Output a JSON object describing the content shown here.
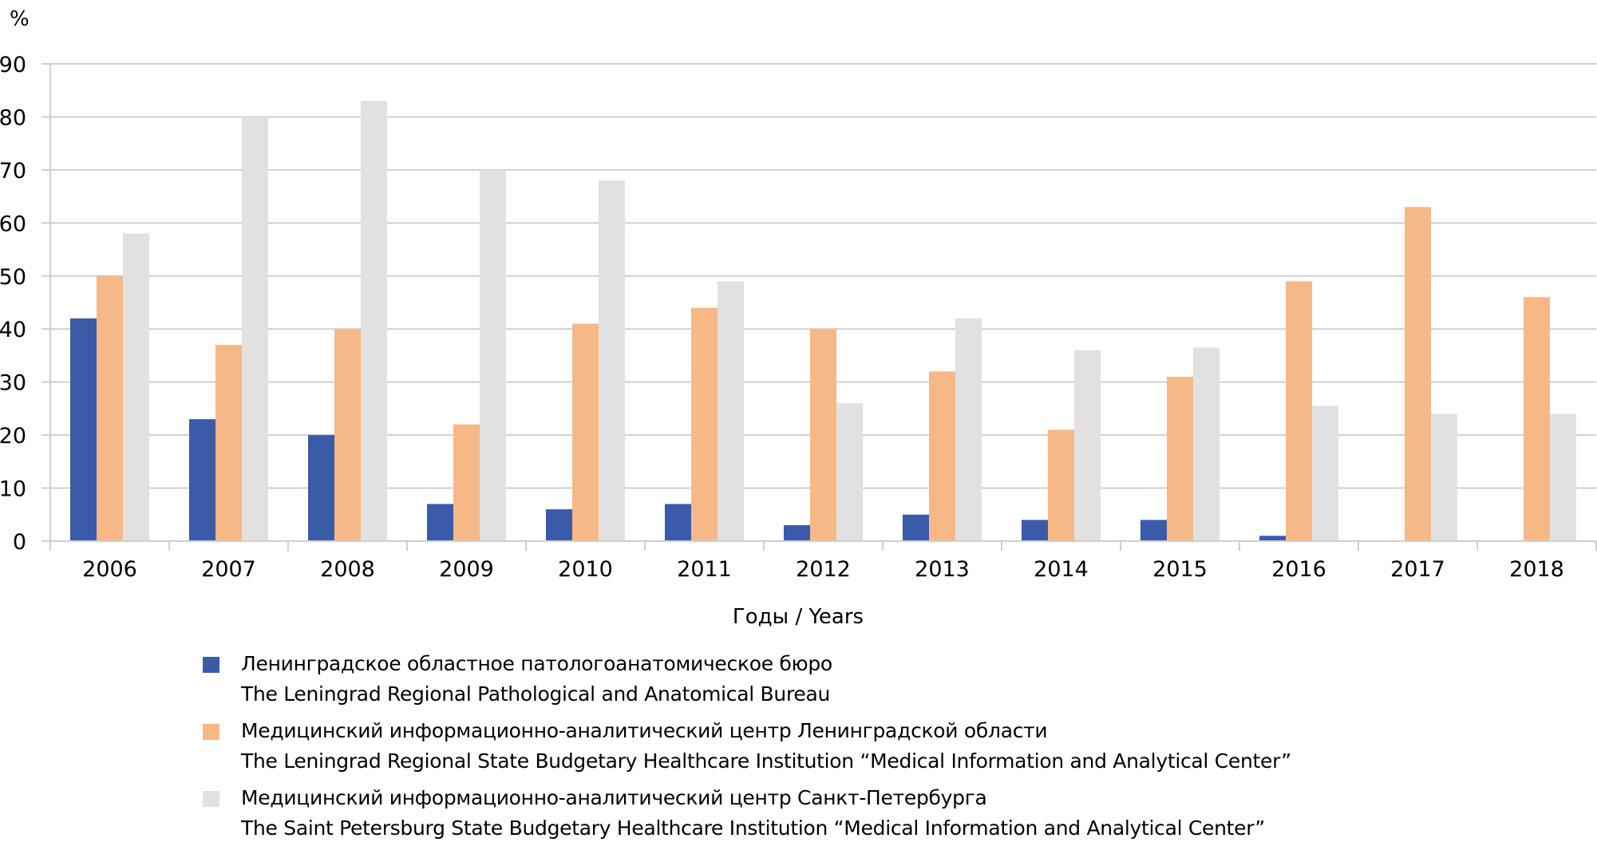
{
  "chart_data": {
    "type": "bar",
    "title": "",
    "ylabel": "%",
    "xlabel": "Годы / Years",
    "ylim": [
      0,
      90
    ],
    "yticks": [
      0,
      10,
      20,
      30,
      40,
      50,
      60,
      70,
      80,
      90
    ],
    "grid": true,
    "legend_position": "bottom",
    "categories": [
      "2006",
      "2007",
      "2008",
      "2009",
      "2010",
      "2011",
      "2012",
      "2013",
      "2014",
      "2015",
      "2016",
      "2017",
      "2018"
    ],
    "series": [
      {
        "name_ru": "Ленинградское областное патологоанатомическое бюро",
        "name_en": "The Leningrad Regional Pathological and Anatomical Bureau",
        "color": "#3a5ba8",
        "values": [
          42,
          23,
          20,
          7,
          6,
          7,
          3,
          5,
          4,
          4,
          1,
          0,
          0
        ]
      },
      {
        "name_ru": "Медицинский информационно-аналитический центр Ленинградской области",
        "name_en": "The Leningrad Regional State Budgetary Healthcare Institution “Medical Information and Analytical Center”",
        "color": "#f7b887",
        "values": [
          50,
          37,
          40,
          22,
          41,
          44,
          40,
          32,
          21,
          31,
          49,
          63,
          46
        ]
      },
      {
        "name_ru": "Медицинский информационно-аналитический центр Санкт-Петербурга",
        "name_en": "The Saint Petersburg State Budgetary Healthcare Institution “Medical Information and Analytical Center”",
        "color": "#e1e1e1",
        "values": [
          58,
          80,
          83,
          70,
          68,
          49,
          26,
          42,
          36,
          36.5,
          25.5,
          24,
          24
        ]
      }
    ]
  }
}
